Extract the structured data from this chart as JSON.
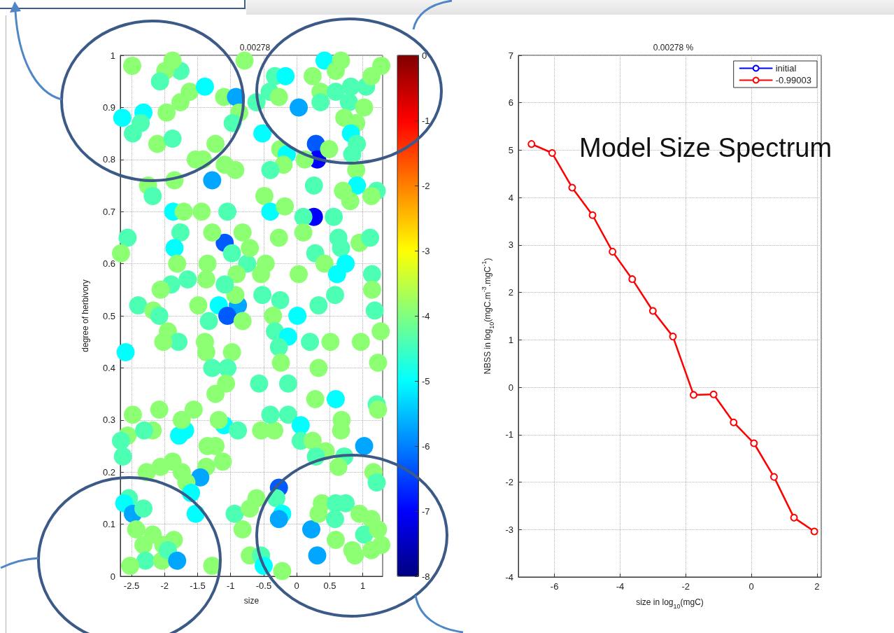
{
  "chart_data": [
    {
      "type": "scatter",
      "title": "0.00278",
      "xlabel": "size",
      "ylabel": "degree of herbivory",
      "x": [
        -2.49,
        -1.76,
        -1.99,
        -1.88,
        -2.07,
        -2.64,
        -2.32,
        -2.36,
        -2.48,
        -2.11,
        -1.88,
        -1.97,
        -1.76,
        -1.62,
        -1.39,
        -1.1,
        -0.92,
        -0.87,
        -0.97,
        -1.23,
        -1.53,
        -1.42,
        -1.09,
        -0.93,
        -1.28,
        -2.25,
        -2.18,
        -1.85,
        -1.87,
        -1.71,
        -1.44,
        -1.05,
        -0.79,
        -0.61,
        -0.33,
        -0.17,
        -0.41,
        -0.27,
        -0.52,
        -0.25,
        -0.15,
        -0.2,
        -0.4,
        0.03,
        0.29,
        0.31,
        0.12,
        0.49,
        0.24,
        0.42,
        0.67,
        0.59,
        0.36,
        0.36,
        0.59,
        0.82,
        1.05,
        1.13,
        1.28,
        0.79,
        1.02,
        0.72,
        0.9,
        0.82,
        0.91,
        0.84,
        0.26,
        0.9,
        0.91,
        1.21,
        0.7,
        0.81,
        1.13,
        0.26,
        0.1,
        0.56,
        -0.49,
        -0.4,
        -0.18,
        -2.56,
        -2.66,
        -1.76,
        -1.85,
        -1.81,
        -1.09,
        -1.28,
        -0.82,
        -0.98,
        -0.75,
        -1.35,
        -0.71,
        -0.27,
        0.1,
        0.28,
        0.42,
        0.63,
        0.67,
        0.74,
        0.61,
        0.95,
        1.11,
        1.14,
        1.14,
        0.03,
        -0.47,
        -0.54,
        -0.91,
        -1.37,
        -1.65,
        -1.9,
        -2.06,
        -2.4,
        -2.17,
        -2.08,
        -2.59,
        -1.95,
        -1.79,
        -2.02,
        -1.49,
        -1.18,
        -0.89,
        -1.05,
        -1.33,
        -0.93,
        -1.09,
        -0.82,
        -0.52,
        -0.25,
        -0.36,
        0.01,
        -0.33,
        -0.13,
        -0.27,
        0.33,
        0.58,
        0.2,
        0.51,
        0.97,
        1.18,
        1.27,
        1.23,
        -1.39,
        -1.37,
        -1.28,
        -0.98,
        -1.05,
        -1.07,
        -1.23,
        -0.24,
        0.33,
        -0.57,
        -0.13,
        0.28,
        0.59,
        1.21,
        -2.48,
        -2.08,
        -2.56,
        -2.66,
        -2.63,
        -2.18,
        -2.31,
        -1.78,
        -1.69,
        -1.74,
        -1.56,
        -1.1,
        -0.89,
        -1.18,
        -0.54,
        -0.34,
        -0.4,
        -0.13,
        0.06,
        0.06,
        0.24,
        0.44,
        0.29,
        0.68,
        0.67,
        1.02,
        0.72,
        0.63,
        1.16,
        1.21,
        1.23,
        -1.35,
        -1.23,
        -1.12,
        -1.37,
        -1.46,
        -2.27,
        -2.06,
        -1.88,
        -1.74,
        -1.67,
        -1.6,
        -1.53,
        -2.54,
        -2.61,
        -2.48,
        -2.32,
        -2.43,
        -2.18,
        -2.32,
        -2.29,
        -2.52,
        -2.02,
        -2.04,
        -1.86,
        -1.95,
        -1.81,
        -1.28,
        -0.94,
        -0.82,
        -0.61,
        -0.71,
        -0.27,
        -0.31,
        -0.22,
        -0.27,
        -0.71,
        -0.54,
        -0.5,
        -0.22,
        0.22,
        0.33,
        0.38,
        0.59,
        0.74,
        0.58,
        0.31,
        0.59,
        0.95,
        1.13,
        1.02,
        0.84,
        0.88,
        1.13,
        1.28,
        1.23
      ],
      "values": [
        0.98,
        0.97,
        0.97,
        0.99,
        0.95,
        0.88,
        0.89,
        0.87,
        0.85,
        0.83,
        0.84,
        0.89,
        0.91,
        0.93,
        0.94,
        0.92,
        0.92,
        0.89,
        0.87,
        0.83,
        0.8,
        0.8,
        0.79,
        0.78,
        0.76,
        0.75,
        0.73,
        0.76,
        0.7,
        0.7,
        0.7,
        0.7,
        0.99,
        0.91,
        0.96,
        0.96,
        0.93,
        0.92,
        0.85,
        0.82,
        0.81,
        0.79,
        0.78,
        0.9,
        0.83,
        0.8,
        0.8,
        0.82,
        0.96,
        0.99,
        0.99,
        0.97,
        0.93,
        0.91,
        0.93,
        0.94,
        0.94,
        0.96,
        0.98,
        0.91,
        0.9,
        0.88,
        0.87,
        0.85,
        0.83,
        0.81,
        0.75,
        0.78,
        0.75,
        0.74,
        0.74,
        0.72,
        0.73,
        0.69,
        0.69,
        0.69,
        0.73,
        0.7,
        0.71,
        0.65,
        0.62,
        0.66,
        0.63,
        0.6,
        0.64,
        0.66,
        0.66,
        0.62,
        0.6,
        0.6,
        0.63,
        0.65,
        0.66,
        0.62,
        0.6,
        0.65,
        0.63,
        0.6,
        0.58,
        0.64,
        0.65,
        0.58,
        0.55,
        0.58,
        0.6,
        0.58,
        0.58,
        0.57,
        0.57,
        0.56,
        0.55,
        0.52,
        0.51,
        0.5,
        0.43,
        0.47,
        0.45,
        0.45,
        0.52,
        0.52,
        0.52,
        0.5,
        0.49,
        0.54,
        0.56,
        0.49,
        0.54,
        0.53,
        0.5,
        0.5,
        0.47,
        0.46,
        0.44,
        0.52,
        0.54,
        0.45,
        0.45,
        0.45,
        0.51,
        0.47,
        0.41,
        0.45,
        0.43,
        0.4,
        0.43,
        0.4,
        0.37,
        0.35,
        0.41,
        0.4,
        0.37,
        0.37,
        0.34,
        0.34,
        0.33,
        0.31,
        0.32,
        0.27,
        0.26,
        0.23,
        0.28,
        0.28,
        0.27,
        0.28,
        0.3,
        0.32,
        0.29,
        0.28,
        0.3,
        0.28,
        0.28,
        0.31,
        0.31,
        0.29,
        0.26,
        0.26,
        0.24,
        0.23,
        0.3,
        0.28,
        0.25,
        0.23,
        0.21,
        0.2,
        0.18,
        0.32,
        0.25,
        0.25,
        0.22,
        0.21,
        0.19,
        0.2,
        0.21,
        0.22,
        0.2,
        0.18,
        0.16,
        0.12,
        0.15,
        0.14,
        0.12,
        0.13,
        0.09,
        0.08,
        0.06,
        0.03,
        0.02,
        0.06,
        0.03,
        0.07,
        0.05,
        0.03,
        0.02,
        0.12,
        0.09,
        0.15,
        0.13,
        0.17,
        0.15,
        0.12,
        0.11,
        0.04,
        0.04,
        0.02,
        0.01,
        0.09,
        0.12,
        0.14,
        0.14,
        0.14,
        0.11,
        0.04,
        0.07,
        0.12,
        0.11,
        0.08,
        0.05,
        0.04,
        0.05,
        0.06,
        0.09
      ],
      "cvalues": [
        -3.9,
        -4.4,
        -3.9,
        -3.9,
        -4.4,
        -5,
        -5,
        -4.4,
        -4.4,
        -3.9,
        -4.4,
        -3.9,
        -3.9,
        -3.9,
        -5,
        -3.9,
        -5.7,
        -3.9,
        -4.4,
        -3.9,
        -3.9,
        -3.9,
        -3.9,
        -3.9,
        -5.7,
        -3.9,
        -4.4,
        -3.9,
        -5,
        -3.9,
        -3.9,
        -4.4,
        -3.9,
        -4.4,
        -4.4,
        -5,
        -4.4,
        -3.9,
        -5,
        -3.9,
        -5,
        -3.9,
        -4.4,
        -5.7,
        -6.3,
        -7,
        -3.9,
        -3.9,
        -3.9,
        -5,
        -3.9,
        -3.9,
        -3.9,
        -4.4,
        -4.4,
        -4.4,
        -4.4,
        -3.9,
        -3.9,
        -4.4,
        -3.9,
        -3.9,
        -3.9,
        -5,
        -4.4,
        -4.4,
        -4.4,
        -3.9,
        -5,
        -4.4,
        -3.9,
        -3.9,
        -3.9,
        -7,
        -4.4,
        -4.4,
        -3.9,
        -5,
        -3.9,
        -4.4,
        -3.9,
        -4.4,
        -5,
        -3.9,
        -6.3,
        -3.9,
        -3.9,
        -4.4,
        -4.4,
        -3.9,
        -3.9,
        -3.9,
        -3.9,
        -4.4,
        -3.9,
        -4.4,
        -4.4,
        -5,
        -5,
        -3.9,
        -4.4,
        -4.4,
        -3.9,
        -3.9,
        -3.9,
        -3.9,
        -3.9,
        -3.9,
        -4.4,
        -4.4,
        -3.9,
        -4.4,
        -3.9,
        -4.4,
        -5,
        -3.9,
        -4.4,
        -3.9,
        -3.9,
        -5,
        -5.7,
        -6.3,
        -4.4,
        -3.9,
        -4.4,
        -3.9,
        -4.4,
        -4.4,
        -3.9,
        -5,
        -4.4,
        -5,
        -4.4,
        -4.4,
        -4.4,
        -4.4,
        -3.9,
        -3.9,
        -4.4,
        -3.9,
        -3.9,
        -3.9,
        -3.9,
        -4.4,
        -3.9,
        -4.4,
        -3.9,
        -3.9,
        -3.9,
        -3.9,
        -4.4,
        -4.4,
        -3.9,
        -5,
        -4.4,
        -3.9,
        -3.9,
        -3.9,
        -4.4,
        -4.4,
        -3.9,
        -4.4,
        -5,
        -5,
        -3.9,
        -3.9,
        -5,
        -4.4,
        -3.9,
        -3.9,
        -3.9,
        -4.4,
        -4.4,
        -5,
        -4.4,
        -3.9,
        -3.9,
        -4.4,
        -3.9,
        -3.9,
        -5.7,
        -4.4,
        -3.9,
        -3.9,
        -4.4,
        -3.9,
        -3.9,
        -3.9,
        -3.9,
        -3.9,
        -5.7,
        -3.9,
        -3.9,
        -3.9,
        -3.9,
        -3.9,
        -5,
        -5,
        -4.4,
        -5,
        -5.7,
        -4.4,
        -3.9,
        -3.9,
        -3.9,
        -4.4,
        -3.9,
        -3.9,
        -3.9,
        -3.9,
        -4.4,
        -5.7,
        -3.9,
        -4.4,
        -3.9,
        -3.9,
        -3.9,
        -6.3,
        -4.4,
        -5,
        -5.7,
        -3.9,
        -4.4,
        -5,
        -3.9,
        -5.7,
        -3.9,
        -3.9,
        -4.4,
        -4.4,
        -4.4,
        -5.7,
        -3.9,
        -3.9,
        -3.9,
        -4.4,
        -3.9,
        -3.9,
        -3.9,
        -3.9,
        -3.9
      ],
      "xlim": [
        -2.67,
        1.3
      ],
      "xticks": [
        -2.5,
        -2,
        -1.5,
        -1,
        -0.5,
        0,
        0.5,
        1
      ],
      "ylim": [
        0,
        1
      ],
      "yticks": [
        0,
        0.1,
        0.2,
        0.3,
        0.4,
        0.5,
        0.6,
        0.7,
        0.8,
        0.9,
        1
      ],
      "clim": [
        -8,
        0
      ],
      "cticks": [
        -8,
        -7,
        -6,
        -5,
        -4,
        -3,
        -2,
        -1,
        0
      ],
      "grid": true,
      "marker": "circle"
    },
    {
      "type": "line",
      "title": "0.00278 %",
      "xlabel": "size in log$_{10}$(mgC)",
      "ylabel": "NBSS in log$_{10}$(mgC.m$^{-3}$.mgC$^{-1}$)",
      "x": [
        -6.7,
        -6.07,
        -5.46,
        -4.84,
        -4.23,
        -3.63,
        -3.0,
        -2.39,
        -1.76,
        -1.15,
        -0.54,
        0.08,
        0.69,
        1.3,
        1.92
      ],
      "series": [
        {
          "name": "initial",
          "color": "#0000ff",
          "values": [
            null,
            null,
            null,
            null,
            null,
            null,
            null,
            null,
            null,
            null,
            null,
            null,
            null,
            null,
            null
          ]
        },
        {
          "name": "-0.99003",
          "color": "#ff0000",
          "values": [
            5.13,
            4.94,
            4.21,
            3.63,
            2.86,
            2.28,
            1.61,
            1.07,
            -0.16,
            -0.15,
            -0.74,
            -1.18,
            -1.89,
            -2.75,
            -3.04
          ]
        }
      ],
      "xlim": [
        -7.1,
        2.13
      ],
      "xticks": [
        -6,
        -4,
        -2,
        0,
        2
      ],
      "ylim": [
        -4,
        7
      ],
      "yticks": [
        -4,
        -3,
        -2,
        -1,
        0,
        1,
        2,
        3,
        4,
        5,
        6,
        7
      ],
      "grid": true,
      "legend": "top right",
      "marker": "circle",
      "line_style": "solid",
      "annotations": [
        "Model Size Spectrum"
      ]
    }
  ]
}
